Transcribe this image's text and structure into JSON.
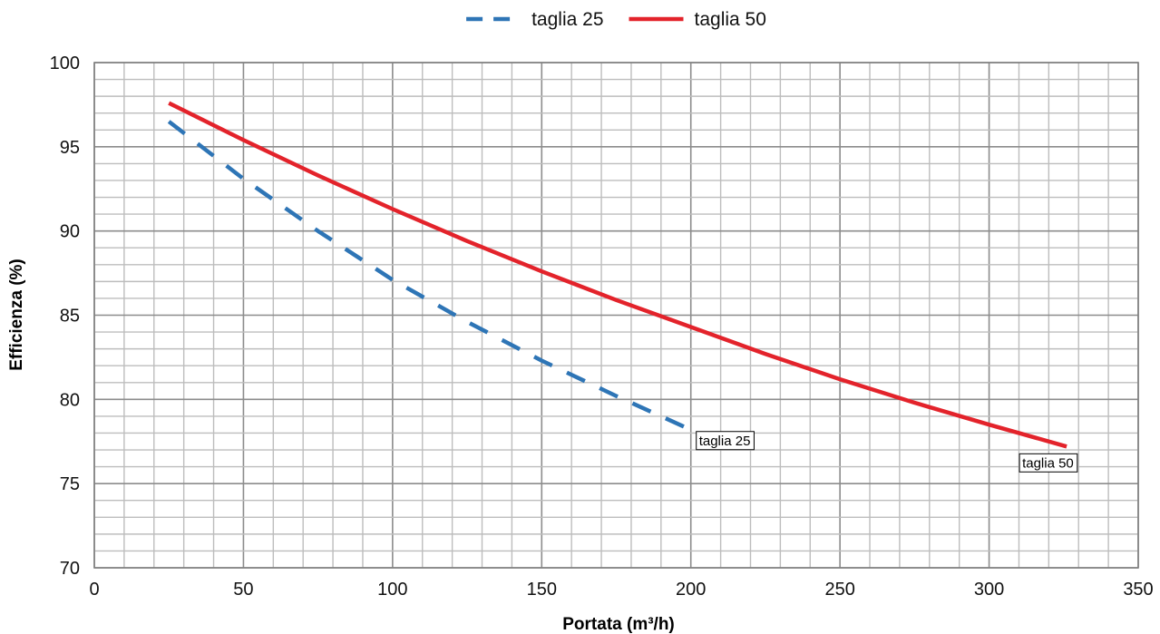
{
  "chart_data": {
    "type": "line",
    "xlabel": "Portata (m³/h)",
    "ylabel": "Efficienza (%)",
    "xlim": [
      0,
      350
    ],
    "ylim": [
      70,
      100
    ],
    "x_ticks": [
      0,
      50,
      100,
      150,
      200,
      250,
      300,
      350
    ],
    "y_ticks": [
      70,
      75,
      80,
      85,
      90,
      95,
      100
    ],
    "x_minor_step": 10,
    "y_minor_step": 1,
    "grid": true,
    "legend_position": "top-center",
    "series": [
      {
        "name": "taglia 25",
        "style": "dashed",
        "color": "#2e75b6",
        "end_label": "taglia 25",
        "x": [
          25,
          50,
          75,
          100,
          125,
          150,
          175,
          200
        ],
        "y": [
          96.5,
          93.1,
          90.0,
          87.1,
          84.6,
          82.3,
          80.2,
          78.2
        ]
      },
      {
        "name": "taglia 50",
        "style": "solid",
        "color": "#e3232b",
        "end_label": "taglia 50",
        "x": [
          25,
          50,
          75,
          100,
          125,
          150,
          175,
          200,
          225,
          250,
          275,
          300,
          326
        ],
        "y": [
          97.6,
          95.4,
          93.3,
          91.3,
          89.4,
          87.6,
          85.9,
          84.3,
          82.7,
          81.2,
          79.8,
          78.5,
          77.2
        ]
      }
    ]
  }
}
